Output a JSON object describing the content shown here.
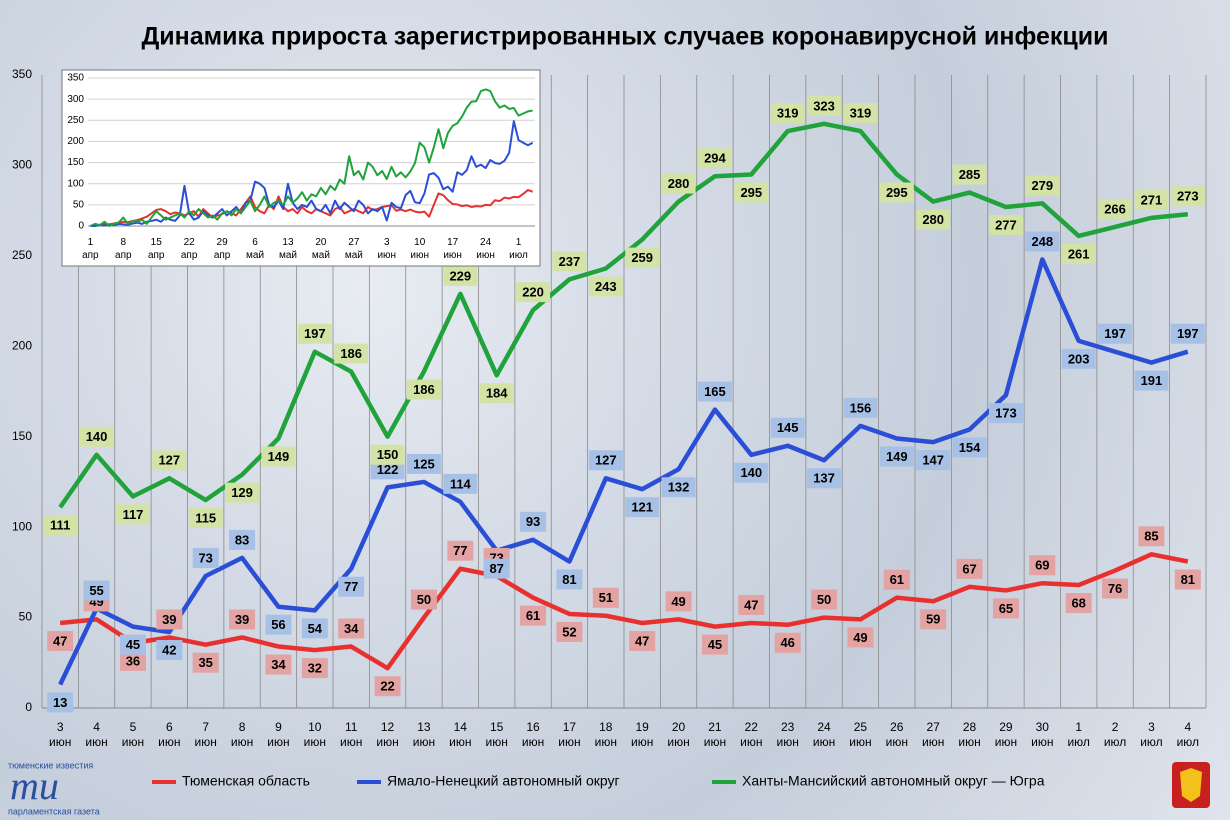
{
  "chart_data": [
    {
      "type": "line",
      "title": "Динамика прироста зарегистрированных случаев коронавирусной инфекции",
      "categories": [
        "3 июн",
        "4 июн",
        "5 июн",
        "6 июн",
        "7 июн",
        "8 июн",
        "9 июн",
        "10 июн",
        "11 июн",
        "12 июн",
        "13 июн",
        "14 июн",
        "15 июн",
        "16 июн",
        "17 июн",
        "18 июн",
        "19 июн",
        "20 июн",
        "21 июн",
        "22 июн",
        "23 июн",
        "24 июн",
        "25 июн",
        "26 июн",
        "27 июн",
        "28 июн",
        "29 июн",
        "30 июн",
        "1 июл",
        "2 июл",
        "3 июл",
        "4 июл"
      ],
      "series": [
        {
          "name": "Тюменская область",
          "color": "#e8312f",
          "label_color": "#e3a3a3",
          "values": [
            47,
            49,
            36,
            39,
            35,
            39,
            34,
            32,
            34,
            22,
            50,
            77,
            73,
            61,
            52,
            51,
            47,
            49,
            45,
            47,
            46,
            50,
            49,
            61,
            59,
            67,
            65,
            69,
            68,
            76,
            85,
            81
          ]
        },
        {
          "name": "Ямало-Ненецкий автономный округ",
          "color": "#2a4fd6",
          "label_color": "#a7c1e6",
          "values": [
            13,
            55,
            45,
            42,
            73,
            83,
            56,
            54,
            77,
            122,
            125,
            114,
            87,
            93,
            81,
            127,
            121,
            132,
            165,
            140,
            145,
            137,
            156,
            149,
            147,
            154,
            173,
            248,
            203,
            197,
            191,
            197
          ]
        },
        {
          "name": "Ханты-Мансийский автономный округ — Югра",
          "color": "#1fa33a",
          "label_color": "#d3e3a6",
          "values": [
            111,
            140,
            117,
            127,
            115,
            129,
            149,
            197,
            186,
            150,
            186,
            229,
            184,
            220,
            237,
            243,
            259,
            280,
            294,
            295,
            319,
            323,
            319,
            295,
            280,
            285,
            277,
            279,
            261,
            266,
            271,
            273
          ]
        }
      ],
      "ylim": [
        0,
        350
      ],
      "yticks": [
        0,
        50,
        100,
        150,
        200,
        250,
        300,
        350
      ],
      "grid": "vertical",
      "legend": "bottom",
      "value_labels_shown": true
    },
    {
      "type": "line",
      "categories": [
        "1 апр",
        null,
        null,
        null,
        null,
        null,
        null,
        "8 апр",
        null,
        null,
        null,
        null,
        null,
        null,
        "15 апр",
        null,
        null,
        null,
        null,
        null,
        null,
        "22 апр",
        null,
        null,
        null,
        null,
        null,
        null,
        "29 апр",
        null,
        null,
        null,
        null,
        null,
        null,
        "6 май",
        null,
        null,
        null,
        null,
        null,
        null,
        "13 май",
        null,
        null,
        null,
        null,
        null,
        null,
        "20 май",
        null,
        null,
        null,
        null,
        null,
        null,
        "27 май",
        null,
        null,
        null,
        null,
        null,
        null,
        "3 июн",
        null,
        null,
        null,
        null,
        null,
        null,
        "10 июн",
        null,
        null,
        null,
        null,
        null,
        null,
        "17 июн",
        null,
        null,
        null,
        null,
        null,
        null,
        "24 июн",
        null,
        null,
        null,
        null,
        null,
        null,
        "1 июл",
        null,
        null,
        null
      ],
      "series": [
        {
          "color": "#e8312f",
          "values": [
            0,
            2,
            3,
            5,
            4,
            6,
            8,
            10,
            9,
            12,
            14,
            18,
            22,
            30,
            38,
            40,
            35,
            28,
            32,
            30,
            25,
            30,
            35,
            22,
            40,
            30,
            20,
            25,
            28,
            35,
            30,
            25,
            40,
            55,
            70,
            45,
            35,
            30,
            50,
            40,
            70,
            45,
            35,
            40,
            30,
            45,
            35,
            30,
            40,
            35,
            30,
            25,
            40,
            45,
            30,
            35,
            40,
            35,
            30,
            45,
            38,
            40,
            45,
            47,
            49,
            36,
            39,
            35,
            39,
            34,
            32,
            34,
            22,
            50,
            77,
            73,
            61,
            52,
            51,
            47,
            49,
            45,
            47,
            46,
            50,
            49,
            61,
            59,
            67,
            65,
            69,
            68,
            76,
            85,
            81
          ]
        },
        {
          "color": "#2a4fd6",
          "values": [
            0,
            0,
            2,
            1,
            3,
            2,
            5,
            4,
            3,
            6,
            8,
            5,
            10,
            12,
            15,
            10,
            20,
            15,
            12,
            25,
            95,
            30,
            15,
            20,
            35,
            25,
            20,
            30,
            40,
            25,
            35,
            45,
            30,
            55,
            60,
            105,
            100,
            90,
            50,
            45,
            60,
            40,
            100,
            55,
            40,
            50,
            45,
            60,
            40,
            35,
            50,
            30,
            60,
            40,
            55,
            45,
            35,
            60,
            50,
            30,
            40,
            35,
            45,
            13,
            55,
            45,
            42,
            73,
            83,
            56,
            54,
            77,
            122,
            125,
            114,
            87,
            93,
            81,
            127,
            121,
            132,
            165,
            140,
            145,
            137,
            156,
            149,
            147,
            154,
            173,
            248,
            203,
            197,
            191,
            197
          ]
        },
        {
          "color": "#1fa33a",
          "values": [
            0,
            5,
            2,
            10,
            0,
            5,
            8,
            20,
            5,
            12,
            10,
            15,
            5,
            20,
            35,
            25,
            15,
            20,
            25,
            30,
            20,
            35,
            25,
            40,
            30,
            20,
            25,
            15,
            30,
            35,
            25,
            40,
            30,
            45,
            60,
            35,
            50,
            70,
            45,
            55,
            60,
            50,
            70,
            55,
            65,
            80,
            60,
            75,
            70,
            90,
            75,
            95,
            85,
            110,
            100,
            165,
            120,
            130,
            110,
            150,
            140,
            120,
            130,
            111,
            140,
            117,
            127,
            115,
            129,
            149,
            197,
            186,
            150,
            186,
            229,
            184,
            220,
            237,
            243,
            259,
            280,
            294,
            295,
            319,
            323,
            319,
            295,
            280,
            285,
            277,
            279,
            261,
            266,
            271,
            273
          ]
        }
      ],
      "ylim": [
        0,
        350
      ],
      "yticks": [
        0,
        50,
        100,
        150,
        200,
        250,
        300,
        350
      ],
      "grid": "horizontal"
    }
  ],
  "logo": {
    "top": "тюменские известия",
    "mark": "ти",
    "bottom": "парламентская газета"
  }
}
